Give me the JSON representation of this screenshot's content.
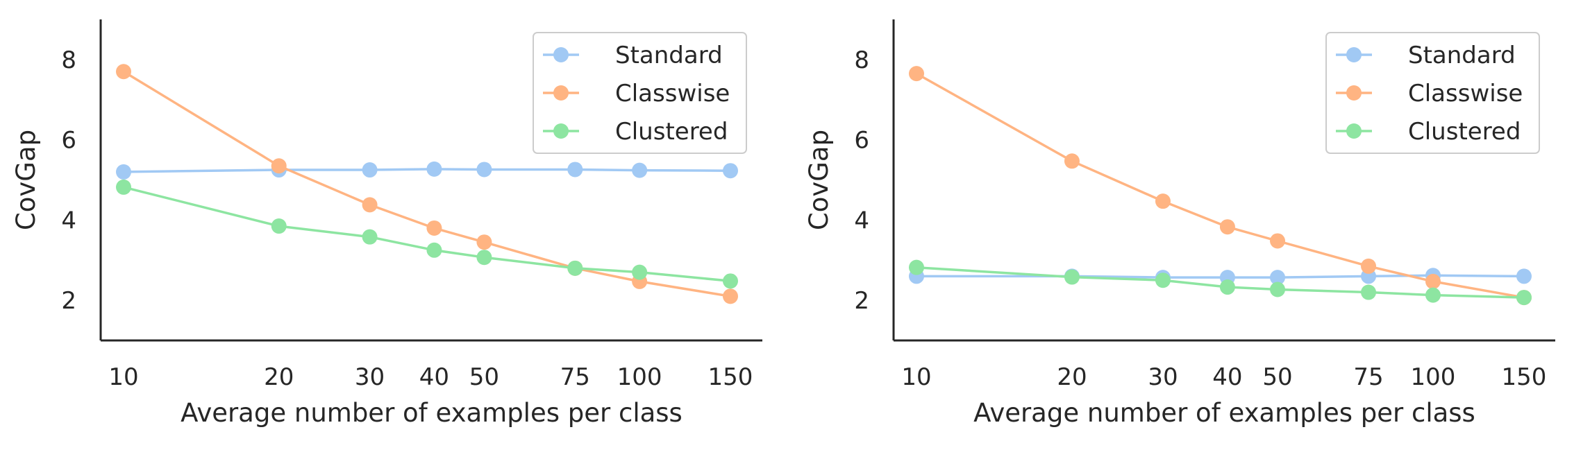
{
  "chart_data": [
    {
      "type": "line",
      "title": "",
      "xlabel": "Average number of examples per class",
      "ylabel": "CovGap",
      "x": [
        10,
        20,
        30,
        40,
        50,
        75,
        100,
        150
      ],
      "x_tick_labels": [
        "10",
        "20",
        "30",
        "40",
        "50",
        "75",
        "100",
        "150"
      ],
      "x_scale": "log",
      "y_ticks": [
        2,
        4,
        6,
        8
      ],
      "y_tick_labels": [
        "2",
        "4",
        "6",
        "8"
      ],
      "ylim": [
        1,
        9
      ],
      "grid": false,
      "legend_position": "top-right",
      "series": [
        {
          "name": "Standard",
          "color": "#a1c9f4",
          "values": [
            5.2,
            5.25,
            5.25,
            5.27,
            5.26,
            5.26,
            5.24,
            5.23
          ]
        },
        {
          "name": "Classwise",
          "color": "#ffb482",
          "values": [
            7.7,
            5.35,
            4.38,
            3.8,
            3.45,
            2.8,
            2.47,
            2.1
          ]
        },
        {
          "name": "Clustered",
          "color": "#8de5a1",
          "values": [
            4.82,
            3.85,
            3.58,
            3.25,
            3.07,
            2.8,
            2.7,
            2.48
          ]
        }
      ]
    },
    {
      "type": "line",
      "title": "",
      "xlabel": "Average number of examples per class",
      "ylabel": "CovGap",
      "x": [
        10,
        20,
        30,
        40,
        50,
        75,
        100,
        150
      ],
      "x_tick_labels": [
        "10",
        "20",
        "30",
        "40",
        "50",
        "75",
        "100",
        "150"
      ],
      "x_scale": "log",
      "y_ticks": [
        2,
        4,
        6,
        8
      ],
      "y_tick_labels": [
        "2",
        "4",
        "6",
        "8"
      ],
      "ylim": [
        1,
        9
      ],
      "grid": false,
      "legend_position": "top-right",
      "series": [
        {
          "name": "Standard",
          "color": "#a1c9f4",
          "values": [
            2.6,
            2.6,
            2.57,
            2.57,
            2.57,
            2.6,
            2.62,
            2.6
          ]
        },
        {
          "name": "Classwise",
          "color": "#ffb482",
          "values": [
            7.65,
            5.47,
            4.47,
            3.83,
            3.48,
            2.85,
            2.47,
            2.07
          ]
        },
        {
          "name": "Clustered",
          "color": "#8de5a1",
          "values": [
            2.82,
            2.58,
            2.5,
            2.33,
            2.27,
            2.2,
            2.13,
            2.07
          ]
        }
      ]
    }
  ]
}
